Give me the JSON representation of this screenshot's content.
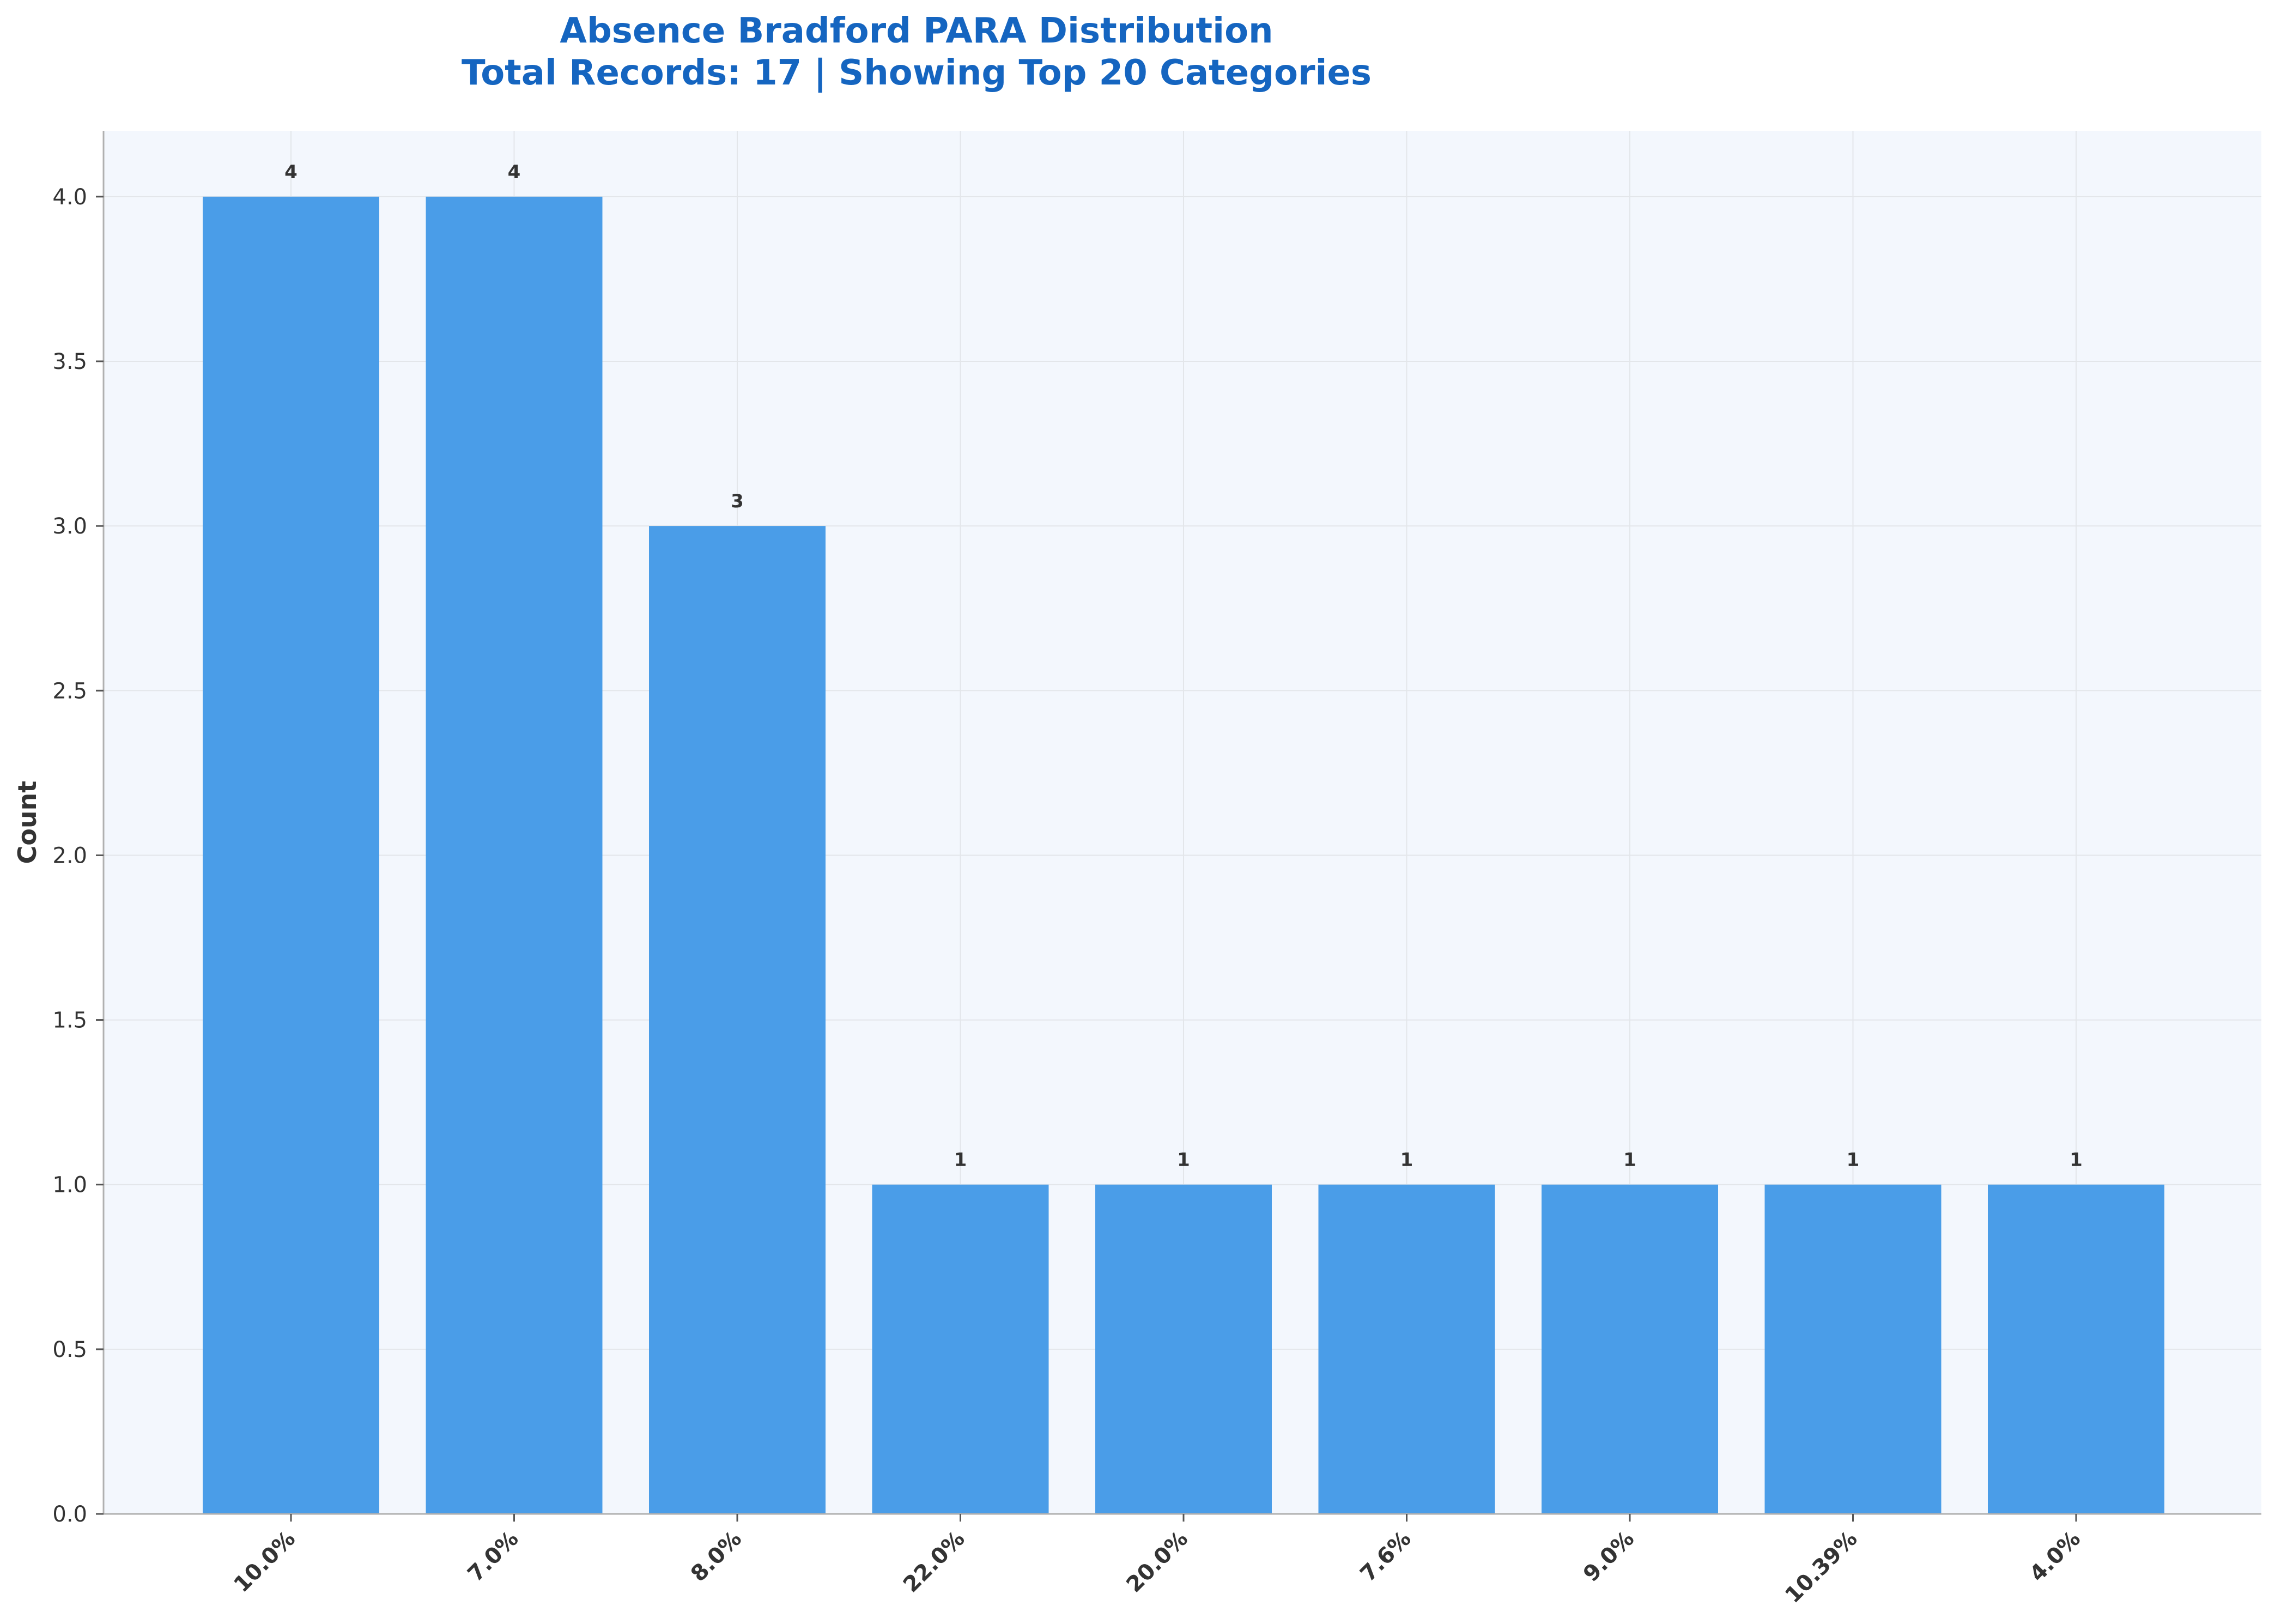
{
  "chart_data": {
    "type": "bar",
    "title": "Absence Bradford PARA Distribution",
    "subtitle": "Total Records: 17 | Showing Top 20 Categories",
    "xlabel": "",
    "ylabel": "Count",
    "categories": [
      "10.0%",
      "7.0%",
      "8.0%",
      "22.0%",
      "20.0%",
      "7.6%",
      "9.0%",
      "10.39%",
      "4.0%"
    ],
    "values": [
      4,
      4,
      3,
      1,
      1,
      1,
      1,
      1,
      1
    ],
    "value_labels": [
      "4",
      "4",
      "3",
      "1",
      "1",
      "1",
      "1",
      "1",
      "1"
    ],
    "ylim": [
      0,
      4.2
    ],
    "yticks": [
      0.0,
      0.5,
      1.0,
      1.5,
      2.0,
      2.5,
      3.0,
      3.5,
      4.0
    ],
    "ytick_labels": [
      "0.0",
      "0.5",
      "1.0",
      "1.5",
      "2.0",
      "2.5",
      "3.0",
      "3.5",
      "4.0"
    ],
    "grid": true,
    "legend": "none",
    "colors": {
      "bar": "#4a9de8",
      "title": "#1565c0",
      "plot_background": "#f3f7fd",
      "grid": "#e3e6ea",
      "axis": "#b0b0b0",
      "text": "#333333"
    }
  }
}
